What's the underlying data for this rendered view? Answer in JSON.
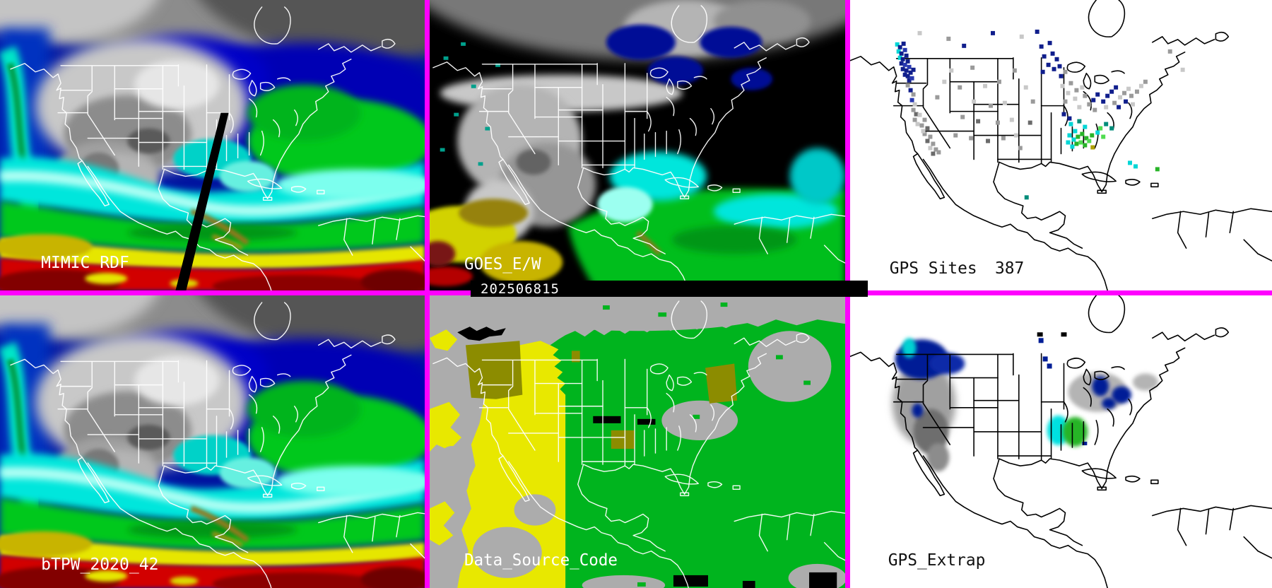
{
  "panels": {
    "mimic": {
      "label": "MIMIC RDF"
    },
    "goes": {
      "label": "GOES_E/W",
      "timestamp": "202506815"
    },
    "gps_sites": {
      "label": "GPS Sites",
      "count": "387",
      "points": [
        [
          64,
          60,
          "c"
        ],
        [
          68,
          64,
          "n"
        ],
        [
          73,
          59,
          "n"
        ],
        [
          66,
          70,
          "c"
        ],
        [
          70,
          73,
          "n"
        ],
        [
          75,
          68,
          "b"
        ],
        [
          68,
          79,
          "c"
        ],
        [
          72,
          81,
          "n"
        ],
        [
          77,
          76,
          "n"
        ],
        [
          70,
          87,
          "n"
        ],
        [
          75,
          89,
          "b"
        ],
        [
          79,
          84,
          "n"
        ],
        [
          72,
          95,
          "n"
        ],
        [
          77,
          97,
          "n"
        ],
        [
          81,
          92,
          "b"
        ],
        [
          75,
          103,
          "n"
        ],
        [
          79,
          105,
          "n"
        ],
        [
          83,
          100,
          "n"
        ],
        [
          87,
          96,
          "n"
        ],
        [
          81,
          111,
          "n"
        ],
        [
          85,
          108,
          "b"
        ],
        [
          79,
          118,
          "g2"
        ],
        [
          83,
          125,
          "n"
        ],
        [
          87,
          131,
          "g2"
        ],
        [
          85,
          139,
          "b"
        ],
        [
          89,
          145,
          "g1"
        ],
        [
          87,
          153,
          "g2"
        ],
        [
          91,
          159,
          "g3"
        ],
        [
          89,
          167,
          "g2"
        ],
        [
          93,
          173,
          "g1"
        ],
        [
          96,
          160,
          "g1"
        ],
        [
          103,
          167,
          "g2"
        ],
        [
          99,
          175,
          "g2"
        ],
        [
          107,
          179,
          "g3"
        ],
        [
          103,
          187,
          "g2"
        ],
        [
          111,
          191,
          "g2"
        ],
        [
          107,
          197,
          "g3"
        ],
        [
          115,
          201,
          "g2"
        ],
        [
          111,
          207,
          "g1"
        ],
        [
          119,
          209,
          "g2"
        ],
        [
          115,
          215,
          "g3"
        ],
        [
          123,
          213,
          "g2"
        ],
        [
          101,
          183,
          "g1"
        ],
        [
          141,
          97,
          "g1"
        ],
        [
          171,
          93,
          "g2"
        ],
        [
          153,
          121,
          "g2"
        ],
        [
          189,
          119,
          "g1"
        ],
        [
          209,
          113,
          "g2"
        ],
        [
          173,
          141,
          "g1"
        ],
        [
          197,
          147,
          "g2"
        ],
        [
          217,
          143,
          "g1"
        ],
        [
          157,
          163,
          "g2"
        ],
        [
          179,
          169,
          "g3"
        ],
        [
          207,
          171,
          "g2"
        ],
        [
          227,
          167,
          "g1"
        ],
        [
          147,
          189,
          "g2"
        ],
        [
          169,
          193,
          "g2"
        ],
        [
          193,
          197,
          "g3"
        ],
        [
          215,
          193,
          "g2"
        ],
        [
          233,
          189,
          "g1"
        ],
        [
          239,
          207,
          "g2"
        ],
        [
          253,
          171,
          "g3"
        ],
        [
          257,
          141,
          "g2"
        ],
        [
          247,
          121,
          "g1"
        ],
        [
          231,
          97,
          "g2"
        ],
        [
          131,
          113,
          "g1"
        ],
        [
          121,
          135,
          "g2"
        ],
        [
          96,
          44,
          "g1"
        ],
        [
          137,
          52,
          "g2"
        ],
        [
          159,
          62,
          "n"
        ],
        [
          200,
          44,
          "n"
        ],
        [
          241,
          49,
          "g1"
        ],
        [
          263,
          42,
          "n"
        ],
        [
          269,
          63,
          "n"
        ],
        [
          281,
          58,
          "n"
        ],
        [
          273,
          77,
          "n"
        ],
        [
          285,
          73,
          "n"
        ],
        [
          291,
          81,
          "n"
        ],
        [
          279,
          89,
          "n"
        ],
        [
          287,
          95,
          "n"
        ],
        [
          295,
          91,
          "n"
        ],
        [
          271,
          99,
          "n"
        ],
        [
          297,
          105,
          "n"
        ],
        [
          303,
          99,
          "g2"
        ],
        [
          299,
          119,
          "g1"
        ],
        [
          311,
          115,
          "g2"
        ],
        [
          307,
          129,
          "g1"
        ],
        [
          319,
          125,
          "g2"
        ],
        [
          327,
          121,
          "g1"
        ],
        [
          303,
          141,
          "g2"
        ],
        [
          317,
          137,
          "g1"
        ],
        [
          331,
          133,
          "g2"
        ],
        [
          323,
          149,
          "g1"
        ],
        [
          337,
          145,
          "g2"
        ],
        [
          343,
          139,
          "n"
        ],
        [
          349,
          131,
          "n"
        ],
        [
          345,
          153,
          "g2"
        ],
        [
          357,
          141,
          "n"
        ],
        [
          363,
          133,
          "n"
        ],
        [
          369,
          127,
          "n"
        ],
        [
          375,
          121,
          "n"
        ],
        [
          361,
          149,
          "g1"
        ],
        [
          373,
          143,
          "g2"
        ],
        [
          381,
          135,
          "g1"
        ],
        [
          387,
          129,
          "g2"
        ],
        [
          393,
          123,
          "g1"
        ],
        [
          379,
          149,
          "n"
        ],
        [
          389,
          141,
          "n"
        ],
        [
          397,
          133,
          "g2"
        ],
        [
          399,
          145,
          "g1"
        ],
        [
          405,
          127,
          "g2"
        ],
        [
          411,
          119,
          "g1"
        ],
        [
          417,
          113,
          "g2"
        ],
        [
          452,
          70,
          "g2"
        ],
        [
          470,
          96,
          "g1"
        ],
        [
          301,
          159,
          "n"
        ],
        [
          309,
          165,
          "n"
        ],
        [
          311,
          173,
          "c"
        ],
        [
          323,
          169,
          "t"
        ],
        [
          331,
          177,
          "c"
        ],
        [
          317,
          183,
          "c"
        ],
        [
          309,
          189,
          "c"
        ],
        [
          315,
          195,
          "c"
        ],
        [
          321,
          191,
          "gr"
        ],
        [
          327,
          187,
          "gr"
        ],
        [
          333,
          193,
          "gr"
        ],
        [
          319,
          201,
          "gr"
        ],
        [
          325,
          199,
          "l"
        ],
        [
          331,
          203,
          "gr"
        ],
        [
          337,
          197,
          "l"
        ],
        [
          313,
          205,
          "c"
        ],
        [
          307,
          199,
          "c"
        ],
        [
          341,
          189,
          "gr"
        ],
        [
          342,
          206,
          "y1"
        ],
        [
          353,
          179,
          "l"
        ],
        [
          361,
          173,
          "t"
        ],
        [
          369,
          179,
          "t"
        ],
        [
          357,
          191,
          "l"
        ],
        [
          349,
          185,
          "c"
        ],
        [
          395,
          228,
          "c"
        ],
        [
          403,
          233,
          "c"
        ],
        [
          434,
          237,
          "gr"
        ],
        [
          248,
          277,
          "t"
        ]
      ]
    },
    "btpw": {
      "label": "bTPW_2020_42"
    },
    "data_source_code": {
      "label": "Data_Source_Code"
    },
    "gps_extrap": {
      "label": "GPS_Extrap"
    }
  },
  "colors": {
    "border": "#FF00FF",
    "timestamp_bar_bg": "#000000",
    "timestamp_text": "#FFFFFF",
    "site_palette": {
      "g1": "#C8C8C8",
      "g2": "#9A9A9A",
      "g3": "#6A6A6A",
      "n": "#101E8C",
      "b": "#2838B0",
      "c": "#00D6D6",
      "t": "#008C7A",
      "gr": "#28B428",
      "l": "#50DC50",
      "y1": "#B0A000"
    },
    "tpw_palette": {
      "dry_gray": "#B4B4B4",
      "cold_navy": "#0000A8",
      "moist_cyan": "#00E6DC",
      "moist_green": "#00C81E",
      "humid_yellow": "#E6E600",
      "humid_olive": "#A0960A",
      "saturated_red": "#D20000",
      "saturated_darkred": "#7E0000",
      "missing_black": "#000000"
    },
    "data_source_palette": {
      "background_gray": "#ACACAC",
      "goes_west_yellow": "#E8E800",
      "goes_east_green": "#00B41E",
      "blended_olive": "#8C8C00",
      "missing_black": "#000000"
    }
  }
}
